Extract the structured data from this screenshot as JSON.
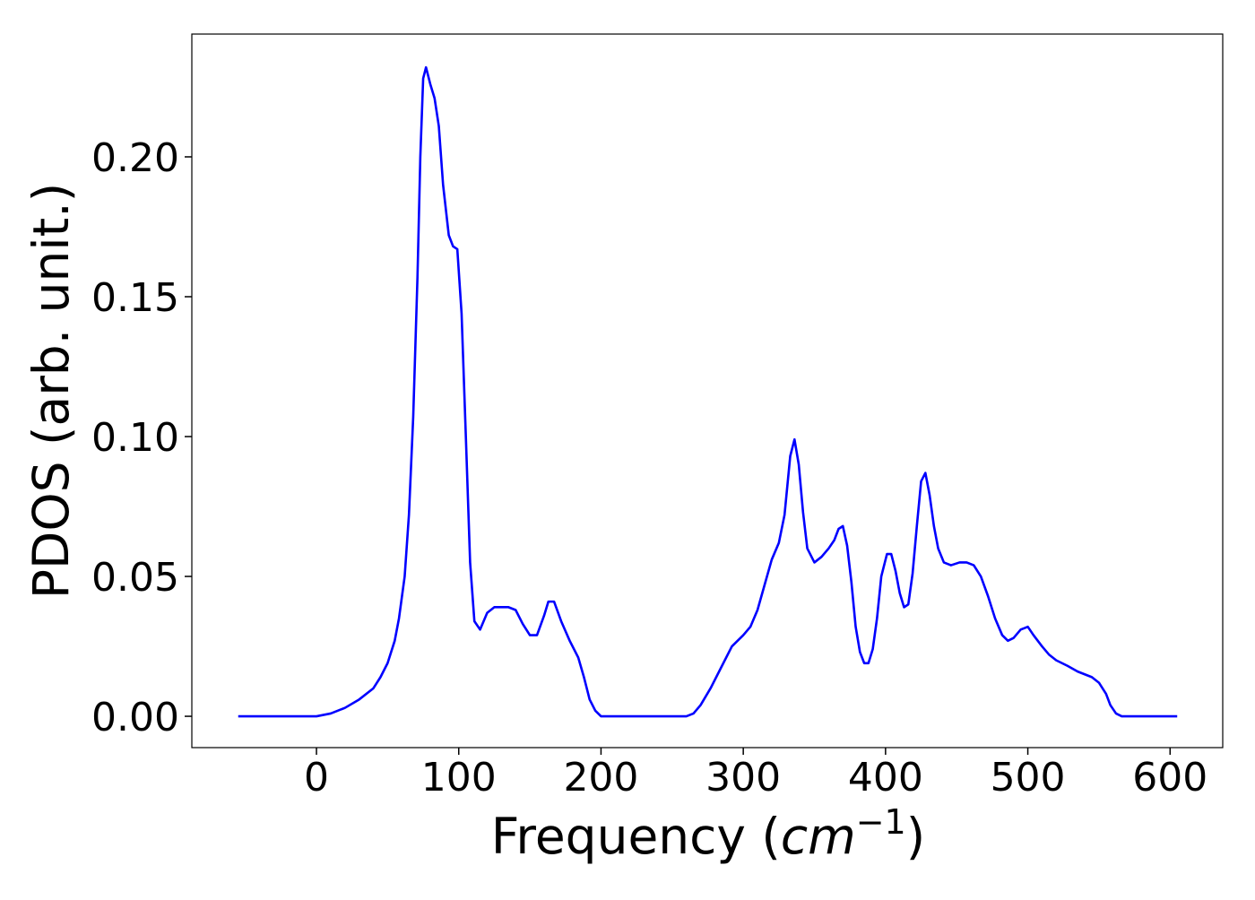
{
  "chart_data": {
    "type": "line",
    "xlabel": [
      "Frequency (",
      "cm",
      "−1",
      ")"
    ],
    "ylabel": "PDOS (arb. unit.)",
    "x": [
      -55,
      0,
      10,
      20,
      30,
      40,
      45,
      50,
      55,
      58,
      62,
      65,
      68,
      71,
      73,
      75,
      77,
      80,
      83,
      86,
      89,
      93,
      96,
      99,
      102,
      105,
      108,
      111,
      115,
      120,
      125,
      135,
      140,
      145,
      150,
      155,
      160,
      163,
      167,
      172,
      178,
      184,
      188,
      192,
      196,
      200,
      260,
      265,
      270,
      277,
      285,
      292,
      300,
      305,
      310,
      315,
      320,
      325,
      329,
      333,
      336,
      339,
      342,
      345,
      350,
      355,
      360,
      364,
      367,
      370,
      373,
      376,
      379,
      382,
      385,
      388,
      391,
      394,
      397,
      401,
      404,
      407,
      410,
      413,
      416,
      419,
      422,
      425,
      428,
      431,
      434,
      437,
      441,
      446,
      452,
      457,
      462,
      467,
      472,
      477,
      482,
      486,
      490,
      495,
      500,
      504,
      510,
      515,
      520,
      528,
      535,
      545,
      550,
      555,
      558,
      562,
      566,
      605
    ],
    "series": [
      {
        "name": "PDOS",
        "color": "#0000ff",
        "values": [
          0,
          0,
          0.001,
          0.003,
          0.006,
          0.01,
          0.014,
          0.019,
          0.027,
          0.035,
          0.05,
          0.072,
          0.107,
          0.157,
          0.2,
          0.228,
          0.232,
          0.226,
          0.221,
          0.211,
          0.19,
          0.172,
          0.168,
          0.167,
          0.144,
          0.1,
          0.055,
          0.034,
          0.031,
          0.037,
          0.039,
          0.039,
          0.038,
          0.033,
          0.029,
          0.029,
          0.036,
          0.041,
          0.041,
          0.034,
          0.027,
          0.021,
          0.014,
          0.006,
          0.002,
          0,
          0,
          0.001,
          0.004,
          0.01,
          0.018,
          0.025,
          0.029,
          0.032,
          0.038,
          0.047,
          0.056,
          0.062,
          0.072,
          0.093,
          0.099,
          0.09,
          0.073,
          0.06,
          0.055,
          0.057,
          0.06,
          0.063,
          0.067,
          0.068,
          0.061,
          0.048,
          0.032,
          0.023,
          0.019,
          0.019,
          0.024,
          0.035,
          0.05,
          0.058,
          0.058,
          0.052,
          0.044,
          0.039,
          0.04,
          0.051,
          0.068,
          0.084,
          0.087,
          0.079,
          0.068,
          0.06,
          0.055,
          0.054,
          0.055,
          0.055,
          0.054,
          0.05,
          0.043,
          0.035,
          0.029,
          0.027,
          0.028,
          0.031,
          0.032,
          0.029,
          0.025,
          0.022,
          0.02,
          0.018,
          0.016,
          0.014,
          0.012,
          0.008,
          0.004,
          0.001,
          0,
          0
        ]
      }
    ],
    "xlim": [
      -87.6,
      637
    ],
    "ylim": [
      -0.0112,
      0.2439
    ],
    "xticks": [
      0,
      100,
      200,
      300,
      400,
      500,
      600
    ],
    "yticks": [
      {
        "value": 0,
        "label": "0.00"
      },
      {
        "value": 0.05,
        "label": "0.05"
      },
      {
        "value": 0.1,
        "label": "0.10"
      },
      {
        "value": 0.15,
        "label": "0.15"
      },
      {
        "value": 0.2,
        "label": "0.20"
      }
    ],
    "grid": false
  }
}
